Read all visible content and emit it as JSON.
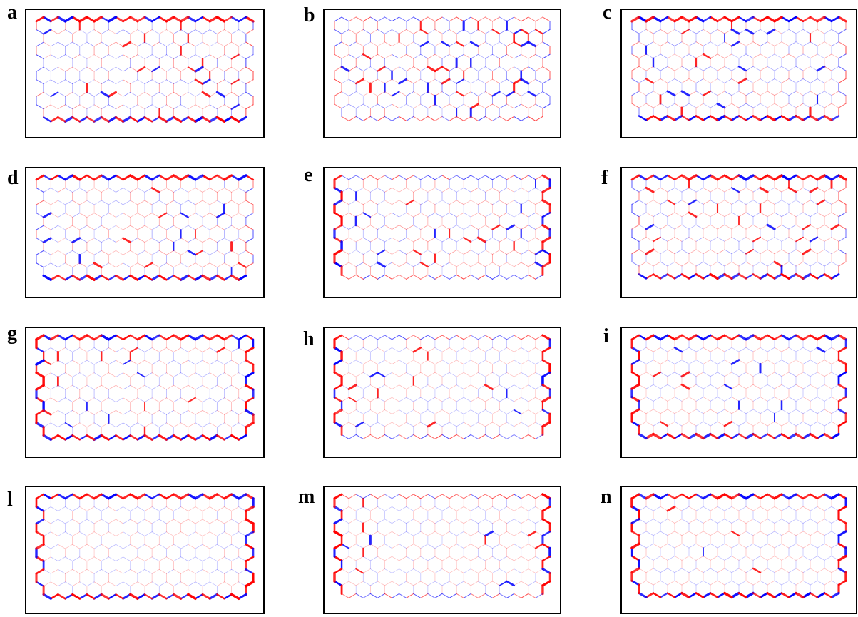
{
  "panels": [
    {
      "letter": "a",
      "edge_emphasis": "horizontal",
      "interior_strength": 0.55,
      "colors": [
        "#ff0000",
        "#0000ff"
      ]
    },
    {
      "letter": "b",
      "edge_emphasis": "none",
      "interior_strength": 0.9,
      "colors": [
        "#ff0000",
        "#0000ff"
      ]
    },
    {
      "letter": "c",
      "edge_emphasis": "horizontal",
      "interior_strength": 0.55,
      "colors": [
        "#ff0000",
        "#0000ff"
      ]
    },
    {
      "letter": "d",
      "edge_emphasis": "horizontal",
      "interior_strength": 0.4,
      "colors": [
        "#ff0000",
        "#0000ff"
      ]
    },
    {
      "letter": "e",
      "edge_emphasis": "vertical",
      "interior_strength": 0.5,
      "colors": [
        "#ff0000",
        "#0000ff"
      ]
    },
    {
      "letter": "f",
      "edge_emphasis": "horizontal",
      "interior_strength": 0.4,
      "colors": [
        "#ff0000",
        "#0000ff"
      ]
    },
    {
      "letter": "g",
      "edge_emphasis": "all",
      "interior_strength": 0.25,
      "colors": [
        "#ff0000",
        "#0000ff"
      ]
    },
    {
      "letter": "h",
      "edge_emphasis": "vertical",
      "interior_strength": 0.15,
      "colors": [
        "#ff0000",
        "#0000ff"
      ]
    },
    {
      "letter": "i",
      "edge_emphasis": "all",
      "interior_strength": 0.2,
      "colors": [
        "#ff0000",
        "#0000ff"
      ]
    },
    {
      "letter": "l",
      "edge_emphasis": "all",
      "interior_strength": 0.12,
      "colors": [
        "#ff0000",
        "#0000ff"
      ]
    },
    {
      "letter": "m",
      "edge_emphasis": "vertical",
      "interior_strength": 0.12,
      "colors": [
        "#ff0000",
        "#0000ff"
      ]
    },
    {
      "letter": "n",
      "edge_emphasis": "all",
      "interior_strength": 0.12,
      "colors": [
        "#ff0000",
        "#0000ff"
      ]
    }
  ]
}
